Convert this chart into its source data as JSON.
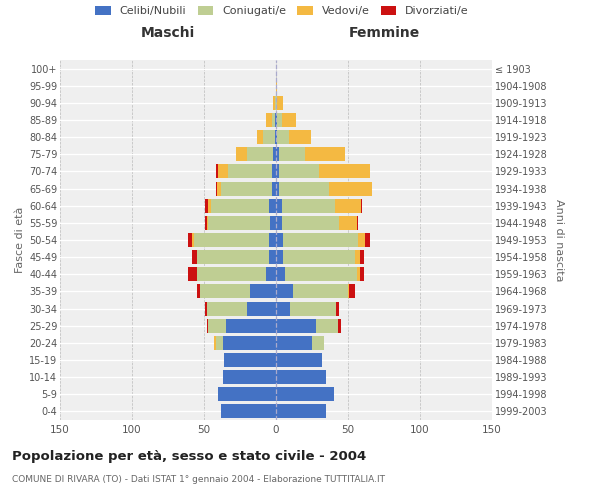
{
  "age_groups": [
    "0-4",
    "5-9",
    "10-14",
    "15-19",
    "20-24",
    "25-29",
    "30-34",
    "35-39",
    "40-44",
    "45-49",
    "50-54",
    "55-59",
    "60-64",
    "65-69",
    "70-74",
    "75-79",
    "80-84",
    "85-89",
    "90-94",
    "95-99",
    "100+"
  ],
  "birth_years": [
    "1999-2003",
    "1994-1998",
    "1989-1993",
    "1984-1988",
    "1979-1983",
    "1974-1978",
    "1969-1973",
    "1964-1968",
    "1959-1963",
    "1954-1958",
    "1949-1953",
    "1944-1948",
    "1939-1943",
    "1934-1938",
    "1929-1933",
    "1924-1928",
    "1919-1923",
    "1914-1918",
    "1909-1913",
    "1904-1908",
    "≤ 1903"
  ],
  "maschi": {
    "celibi": [
      38,
      40,
      37,
      36,
      37,
      35,
      20,
      18,
      7,
      5,
      5,
      4,
      5,
      3,
      3,
      2,
      1,
      1,
      0,
      0,
      0
    ],
    "coniugati": [
      0,
      0,
      0,
      0,
      5,
      12,
      28,
      35,
      48,
      50,
      52,
      43,
      40,
      35,
      30,
      18,
      8,
      2,
      1,
      0,
      0
    ],
    "vedovi": [
      0,
      0,
      0,
      0,
      1,
      0,
      0,
      0,
      0,
      0,
      1,
      1,
      2,
      3,
      7,
      8,
      4,
      4,
      1,
      0,
      0
    ],
    "divorziati": [
      0,
      0,
      0,
      0,
      0,
      1,
      1,
      2,
      6,
      3,
      3,
      1,
      2,
      1,
      2,
      0,
      0,
      0,
      0,
      0,
      0
    ]
  },
  "femmine": {
    "nubili": [
      35,
      40,
      35,
      32,
      25,
      28,
      10,
      12,
      6,
      5,
      5,
      4,
      4,
      2,
      2,
      2,
      1,
      1,
      0,
      0,
      0
    ],
    "coniugate": [
      0,
      0,
      0,
      0,
      8,
      15,
      32,
      38,
      50,
      50,
      52,
      40,
      37,
      35,
      28,
      18,
      8,
      3,
      1,
      0,
      0
    ],
    "vedove": [
      0,
      0,
      0,
      0,
      0,
      0,
      0,
      1,
      2,
      3,
      5,
      12,
      18,
      30,
      35,
      28,
      15,
      10,
      4,
      1,
      0
    ],
    "divorziate": [
      0,
      0,
      0,
      0,
      0,
      2,
      2,
      4,
      3,
      3,
      3,
      1,
      1,
      0,
      0,
      0,
      0,
      0,
      0,
      0,
      0
    ]
  },
  "colors": {
    "celibi": "#4472C4",
    "coniugati": "#BFCE93",
    "vedovi": "#F4B942",
    "divorziati": "#CC1111"
  },
  "xlim": 150,
  "title": "Popolazione per età, sesso e stato civile - 2004",
  "subtitle": "COMUNE DI RIVARA (TO) - Dati ISTAT 1° gennaio 2004 - Elaborazione TUTTITALIA.IT",
  "ylabel_left": "Fasce di età",
  "ylabel_right": "Anni di nascita",
  "header_maschi": "Maschi",
  "header_femmine": "Femmine",
  "legend_labels": [
    "Celibi/Nubili",
    "Coniugati/e",
    "Vedovi/e",
    "Divorziati/e"
  ],
  "background_color": "#ffffff",
  "plot_bg_color": "#efefef"
}
